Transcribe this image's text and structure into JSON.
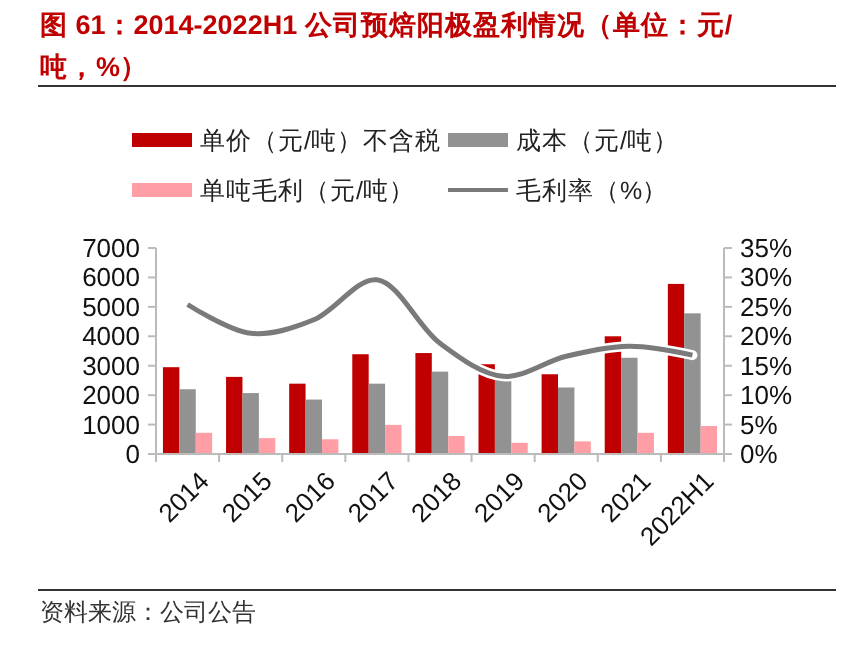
{
  "chart_data": {
    "type": "bar",
    "title": "图 61：2014-2022H1 公司预焙阳极盈利情况（单位：元/吨，%）",
    "annotations": [
      "资料来源：公司公告"
    ],
    "categories": [
      "2014",
      "2015",
      "2016",
      "2017",
      "2018",
      "2019",
      "2020",
      "2021",
      "2022H1"
    ],
    "series": [
      {
        "name": "单价（元/吨）不含税",
        "color": "#c00000",
        "values": [
          2950,
          2620,
          2390,
          3390,
          3430,
          3050,
          2710,
          4000,
          5780
        ]
      },
      {
        "name": "成本（元/吨）",
        "color": "#929292",
        "values": [
          2200,
          2070,
          1850,
          2390,
          2800,
          2710,
          2260,
          3270,
          4780
        ]
      },
      {
        "name": "单吨毛利（元/吨）",
        "color": "#ff9fa5",
        "values": [
          720,
          540,
          500,
          990,
          610,
          380,
          430,
          720,
          950
        ]
      },
      {
        "name": "毛利率（%）",
        "type": "line",
        "axis": "y2",
        "color": "#7a7a7a",
        "values": [
          25.4,
          20.5,
          22.8,
          29.6,
          18.8,
          13.2,
          16.6,
          18.3,
          16.8
        ]
      }
    ],
    "ylim": [
      0,
      7000
    ],
    "yticks": [
      0,
      1000,
      2000,
      3000,
      4000,
      5000,
      6000,
      7000
    ],
    "y2lim": [
      0,
      35
    ],
    "y2ticks": [
      {
        "value": 0,
        "label": "0%"
      },
      {
        "value": 5,
        "label": "5%"
      },
      {
        "value": 10,
        "label": "10%"
      },
      {
        "value": 15,
        "label": "15%"
      },
      {
        "value": 20,
        "label": "20%"
      },
      {
        "value": 25,
        "label": "25%"
      },
      {
        "value": 30,
        "label": "30%"
      },
      {
        "value": 35,
        "label": "35%"
      }
    ],
    "legend": "top",
    "grid": false,
    "line_style": "solid"
  }
}
